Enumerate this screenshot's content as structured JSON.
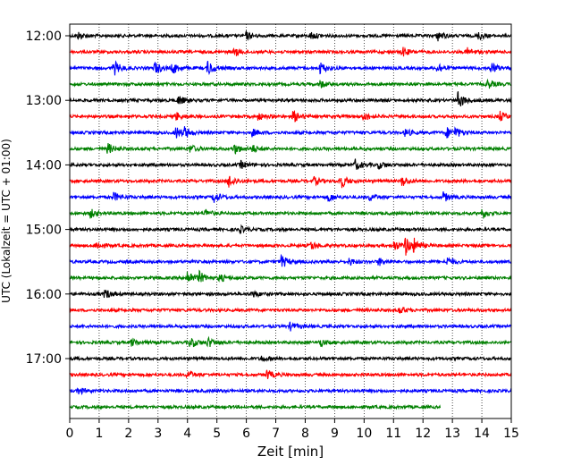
{
  "chart_data": {
    "type": "line",
    "chart_kind": "helicorder",
    "xlabel": "Zeit  [min]",
    "ylabel": "UTC (Lokalzeit = UTC + 01:00)",
    "xlim": [
      0,
      15
    ],
    "x_ticks": [
      0,
      1,
      2,
      3,
      4,
      5,
      6,
      7,
      8,
      9,
      10,
      11,
      12,
      13,
      14,
      15
    ],
    "y_tick_labels": [
      "12:00",
      "13:00",
      "14:00",
      "15:00",
      "16:00",
      "17:00"
    ],
    "grid": "vertical dotted lines at each minute",
    "trace_colors": [
      "#000000",
      "#ff0000",
      "#0000ff",
      "#008000"
    ],
    "traces": [
      {
        "start": "12:00",
        "end_min": 15,
        "events": [
          [
            0.3,
            1.2
          ],
          [
            6.0,
            1.2
          ],
          [
            8.2,
            1.3
          ],
          [
            12.5,
            1.6
          ],
          [
            13.9,
            1.3
          ],
          [
            15.0,
            1.2
          ]
        ]
      },
      {
        "start": "12:15",
        "end_min": 15,
        "events": [
          [
            5.6,
            1.4
          ],
          [
            11.3,
            1.6
          ],
          [
            13.5,
            1.3
          ]
        ]
      },
      {
        "start": "12:30",
        "end_min": 15,
        "events": [
          [
            1.5,
            2.5
          ],
          [
            2.9,
            2.2
          ],
          [
            3.5,
            2.0
          ],
          [
            4.7,
            2.5
          ],
          [
            8.5,
            2.0
          ],
          [
            12.5,
            1.8
          ],
          [
            14.3,
            2.0
          ]
        ]
      },
      {
        "start": "12:45",
        "end_min": 15,
        "events": [
          [
            8.5,
            1.3
          ],
          [
            14.2,
            1.5
          ]
        ]
      },
      {
        "start": "13:00",
        "end_min": 15,
        "events": [
          [
            3.7,
            1.6
          ],
          [
            13.2,
            3.0
          ]
        ]
      },
      {
        "start": "13:15",
        "end_min": 15,
        "events": [
          [
            3.6,
            1.4
          ],
          [
            6.4,
            1.2
          ],
          [
            7.6,
            2.0
          ],
          [
            10.0,
            1.4
          ],
          [
            14.6,
            1.8
          ]
        ]
      },
      {
        "start": "13:30",
        "end_min": 15,
        "events": [
          [
            3.6,
            2.0
          ],
          [
            3.9,
            1.6
          ],
          [
            6.2,
            1.2
          ],
          [
            11.4,
            1.3
          ],
          [
            12.8,
            1.8
          ],
          [
            13.1,
            1.5
          ]
        ]
      },
      {
        "start": "13:45",
        "end_min": 15,
        "events": [
          [
            1.3,
            1.8
          ],
          [
            4.1,
            1.3
          ],
          [
            5.6,
            1.8
          ],
          [
            6.2,
            1.3
          ]
        ]
      },
      {
        "start": "14:00",
        "end_min": 15,
        "events": [
          [
            5.8,
            1.3
          ],
          [
            9.7,
            1.8
          ],
          [
            10.5,
            1.2
          ]
        ]
      },
      {
        "start": "14:15",
        "end_min": 15,
        "events": [
          [
            5.4,
            2.3
          ],
          [
            8.3,
            1.3
          ],
          [
            9.2,
            2.6
          ],
          [
            11.3,
            1.8
          ]
        ]
      },
      {
        "start": "14:30",
        "end_min": 15,
        "events": [
          [
            1.5,
            1.5
          ],
          [
            4.9,
            2.0
          ],
          [
            8.8,
            1.5
          ],
          [
            10.2,
            1.2
          ],
          [
            12.7,
            1.6
          ]
        ]
      },
      {
        "start": "14:45",
        "end_min": 15,
        "events": [
          [
            0.7,
            1.4
          ],
          [
            4.6,
            1.3
          ],
          [
            14.0,
            1.6
          ]
        ]
      },
      {
        "start": "15:00",
        "end_min": 15,
        "events": [
          [
            5.8,
            1.0
          ]
        ]
      },
      {
        "start": "15:15",
        "end_min": 15,
        "events": [
          [
            0.9,
            1.3
          ],
          [
            8.2,
            1.4
          ],
          [
            11.0,
            1.8
          ],
          [
            11.4,
            3.2
          ],
          [
            11.7,
            1.8
          ]
        ]
      },
      {
        "start": "15:30",
        "end_min": 15,
        "events": [
          [
            7.2,
            2.2
          ],
          [
            9.5,
            1.2
          ],
          [
            10.5,
            1.3
          ],
          [
            12.8,
            1.6
          ]
        ]
      },
      {
        "start": "15:45",
        "end_min": 15,
        "events": [
          [
            4.0,
            2.6
          ],
          [
            4.4,
            1.8
          ],
          [
            5.1,
            1.3
          ]
        ]
      },
      {
        "start": "16:00",
        "end_min": 15,
        "events": [
          [
            1.2,
            1.6
          ],
          [
            6.2,
            1.2
          ]
        ]
      },
      {
        "start": "16:15",
        "end_min": 15,
        "events": [
          [
            11.2,
            1.3
          ]
        ]
      },
      {
        "start": "16:30",
        "end_min": 15,
        "events": [
          [
            7.5,
            1.3
          ]
        ]
      },
      {
        "start": "16:45",
        "end_min": 15,
        "events": [
          [
            2.1,
            1.2
          ],
          [
            4.1,
            2.0
          ],
          [
            4.7,
            1.6
          ],
          [
            8.5,
            1.2
          ]
        ]
      },
      {
        "start": "17:00",
        "end_min": 15,
        "events": [
          [
            6.5,
            1.0
          ]
        ]
      },
      {
        "start": "17:15",
        "end_min": 15,
        "events": [
          [
            4.0,
            1.3
          ],
          [
            6.7,
            1.6
          ]
        ]
      },
      {
        "start": "17:30",
        "end_min": 15,
        "events": [
          [
            0.3,
            1.1
          ]
        ]
      },
      {
        "start": "17:45",
        "end_min": 12.6,
        "events": []
      }
    ]
  }
}
